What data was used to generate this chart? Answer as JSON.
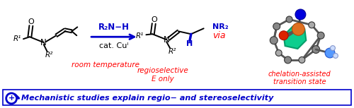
{
  "bg_color": "#ffffff",
  "red": "#ff0000",
  "blue": "#0000cc",
  "black": "#000000",
  "reagent_text": "R₂N−H",
  "catalyst_text": "cat. Cuᴵ",
  "room_temp_text": "room temperature",
  "regio_text": "regioselective",
  "e_only_text": "E only",
  "via_text": "via",
  "chelation_text1": "chelation-assisted",
  "chelation_text2": "transition state",
  "bottom_text": "Mechanistic studies explain regio− and stereoselectivity",
  "fig_width": 5.0,
  "fig_height": 1.53,
  "dpi": 100
}
